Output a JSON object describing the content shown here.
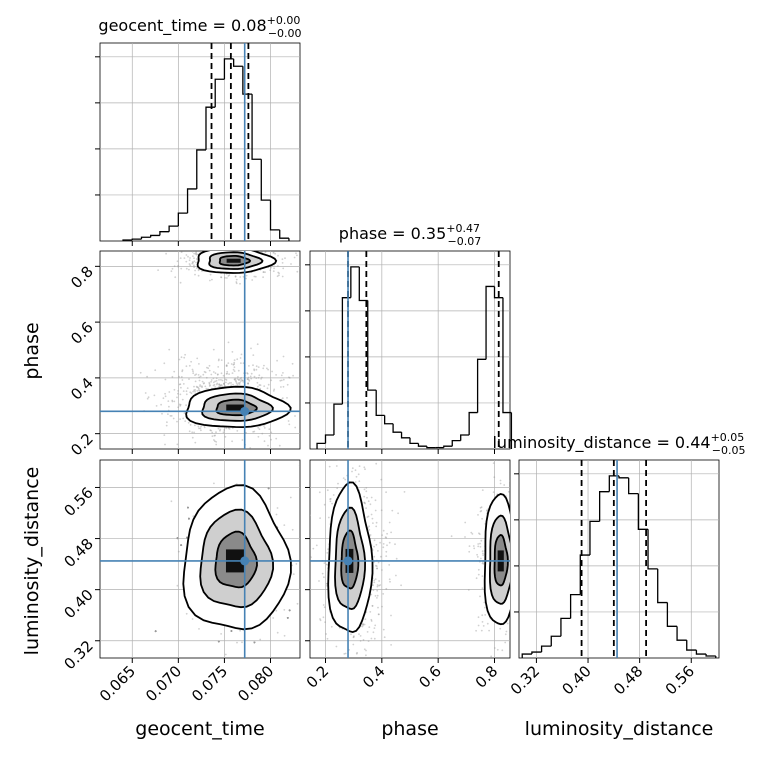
{
  "chart_data": {
    "type": "corner",
    "parameters": [
      "geocent_time",
      "phase",
      "luminosity_distance"
    ],
    "axis_labels": {
      "geocent_time": "geocent_time",
      "phase": "phase",
      "luminosity_distance": "luminosity_distance"
    },
    "ranges": {
      "geocent_time": [
        0.0615,
        0.0832
      ],
      "phase": [
        0.145,
        0.855
      ],
      "luminosity_distance": [
        0.293,
        0.603
      ]
    },
    "ticks": {
      "geocent_time": [
        0.065,
        0.07,
        0.075,
        0.08
      ],
      "geocent_time_labels": [
        "0.065",
        "0.070",
        "0.075",
        "0.080"
      ],
      "phase": [
        0.2,
        0.4,
        0.6,
        0.8
      ],
      "phase_labels": [
        "0.2",
        "0.4",
        "0.6",
        "0.8"
      ],
      "luminosity_distance": [
        0.32,
        0.4,
        0.48,
        0.56
      ],
      "luminosity_distance_labels": [
        "0.32",
        "0.40",
        "0.48",
        "0.56"
      ]
    },
    "truths": {
      "geocent_time": 0.0772,
      "phase": 0.28,
      "luminosity_distance": 0.445
    },
    "titles": [
      {
        "param": "geocent_time",
        "prefix": "geocent_time = ",
        "median": "0.08",
        "plus": "+0.00",
        "minus": "−0.00"
      },
      {
        "param": "phase",
        "prefix": "phase = ",
        "median": "0.35",
        "plus": "+0.47",
        "minus": "−0.07"
      },
      {
        "param": "luminosity_distance",
        "prefix": "luminosity_distance = ",
        "median": "0.44",
        "plus": "+0.05",
        "minus": "−0.05"
      }
    ],
    "quantiles": {
      "geocent_time": [
        0.0736,
        0.0757,
        0.0776
      ],
      "phase": [
        0.28,
        0.345,
        0.815
      ],
      "luminosity_distance": [
        0.39,
        0.44,
        0.49
      ]
    },
    "histograms": {
      "geocent_time": {
        "edges": [
          0.064,
          0.065,
          0.066,
          0.067,
          0.068,
          0.069,
          0.07,
          0.071,
          0.072,
          0.073,
          0.074,
          0.075,
          0.076,
          0.077,
          0.078,
          0.079,
          0.08,
          0.081,
          0.082
        ],
        "counts": [
          0.005,
          0.01,
          0.02,
          0.03,
          0.05,
          0.08,
          0.15,
          0.28,
          0.49,
          0.72,
          0.87,
          0.98,
          0.94,
          0.79,
          0.44,
          0.22,
          0.06,
          0.015
        ]
      },
      "phase": {
        "edges": [
          0.17,
          0.2,
          0.23,
          0.26,
          0.29,
          0.32,
          0.35,
          0.38,
          0.41,
          0.44,
          0.47,
          0.5,
          0.53,
          0.56,
          0.59,
          0.62,
          0.65,
          0.68,
          0.71,
          0.74,
          0.77,
          0.8,
          0.83,
          0.86
        ],
        "counts": [
          0.02,
          0.05,
          0.16,
          0.54,
          0.65,
          0.53,
          0.21,
          0.12,
          0.09,
          0.06,
          0.04,
          0.02,
          0.01,
          0.005,
          0.005,
          0.01,
          0.03,
          0.05,
          0.13,
          0.32,
          0.58,
          0.54,
          0.13
        ]
      },
      "luminosity_distance": {
        "edges": [
          0.298,
          0.313,
          0.328,
          0.343,
          0.358,
          0.373,
          0.388,
          0.403,
          0.418,
          0.433,
          0.448,
          0.463,
          0.478,
          0.493,
          0.508,
          0.523,
          0.538,
          0.553,
          0.568,
          0.583,
          0.598
        ],
        "counts": [
          0.02,
          0.03,
          0.06,
          0.11,
          0.2,
          0.32,
          0.52,
          0.69,
          0.84,
          0.92,
          0.91,
          0.83,
          0.65,
          0.45,
          0.28,
          0.16,
          0.09,
          0.04,
          0.02,
          0.01
        ]
      }
    },
    "contours_2d": {
      "geocent_time|phase": {
        "center": [
          0.0762,
          0.3
        ],
        "secondary_center": [
          0.076,
          0.82
        ],
        "levels": [
          "inner",
          "middle",
          "outer"
        ]
      },
      "geocent_time|luminosity_distance": {
        "center": [
          0.0762,
          0.445
        ],
        "levels": [
          "inner",
          "middle",
          "outer"
        ]
      },
      "phase|luminosity_distance": {
        "center": [
          0.285,
          0.445
        ],
        "secondary_center": [
          0.815,
          0.445
        ],
        "levels": [
          "inner",
          "middle",
          "outer"
        ]
      }
    },
    "colors": {
      "truth": "#4682b4",
      "histogram": "#000000",
      "grid": "#b0b0b0",
      "scatter": "#9a9a9a"
    },
    "grid": true
  }
}
